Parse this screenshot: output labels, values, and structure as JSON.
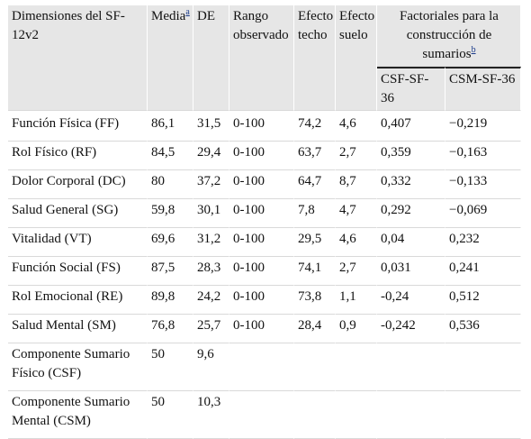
{
  "header": {
    "dimension": "Dimensiones del SF-12v2",
    "mean": "Media",
    "mean_note": "a",
    "sd": "DE",
    "range": "Rango observado",
    "ceiling": "Efecto techo",
    "floor": "Efecto suelo",
    "factorial": "Factoriales para la construcción de sumarios",
    "factorial_note": "b",
    "csf": "CSF-SF-36",
    "csm": "CSM-SF-36"
  },
  "rows": [
    {
      "dimension": "Función Física (FF)",
      "mean": "86,1",
      "sd": "31,5",
      "range": "0-100",
      "ceiling": "74,2",
      "floor": "4,6",
      "csf": "0,407",
      "csm": "−0,219"
    },
    {
      "dimension": "Rol Físico (RF)",
      "mean": "84,5",
      "sd": "29,4",
      "range": "0-100",
      "ceiling": "63,7",
      "floor": "2,7",
      "csf": "0,359",
      "csm": "−0,163"
    },
    {
      "dimension": "Dolor Corporal (DC)",
      "mean": "80",
      "sd": "37,2",
      "range": "0-100",
      "ceiling": "64,7",
      "floor": "8,7",
      "csf": "0,332",
      "csm": "−0,133"
    },
    {
      "dimension": "Salud General (SG)",
      "mean": "59,8",
      "sd": "30,1",
      "range": "0-100",
      "ceiling": "7,8",
      "floor": "4,7",
      "csf": "0,292",
      "csm": "−0,069"
    },
    {
      "dimension": "Vitalidad (VT)",
      "mean": "69,6",
      "sd": "31,2",
      "range": "0-100",
      "ceiling": "29,5",
      "floor": "4,6",
      "csf": "0,04",
      "csm": "0,232"
    },
    {
      "dimension": "Función Social (FS)",
      "mean": "87,5",
      "sd": "28,3",
      "range": "0-100",
      "ceiling": "74,1",
      "floor": "2,7",
      "csf": "0,031",
      "csm": "0,241"
    },
    {
      "dimension": "Rol Emocional (RE)",
      "mean": "89,8",
      "sd": "24,2",
      "range": "0-100",
      "ceiling": "73,8",
      "floor": "1,1",
      "csf": "-0,24",
      "csm": "0,512"
    },
    {
      "dimension": "Salud Mental (SM)",
      "mean": "76,8",
      "sd": "25,7",
      "range": "0-100",
      "ceiling": "28,4",
      "floor": "0,9",
      "csf": "-0,242",
      "csm": "0,536"
    },
    {
      "dimension": "Componente Sumario Físico (CSF)",
      "mean": "50",
      "sd": "9,6",
      "range": "",
      "ceiling": "",
      "floor": "",
      "csf": "",
      "csm": ""
    },
    {
      "dimension": "Componente Sumario Mental (CSM)",
      "mean": "50",
      "sd": "10,3",
      "range": "",
      "ceiling": "",
      "floor": "",
      "csf": "",
      "csm": ""
    }
  ]
}
